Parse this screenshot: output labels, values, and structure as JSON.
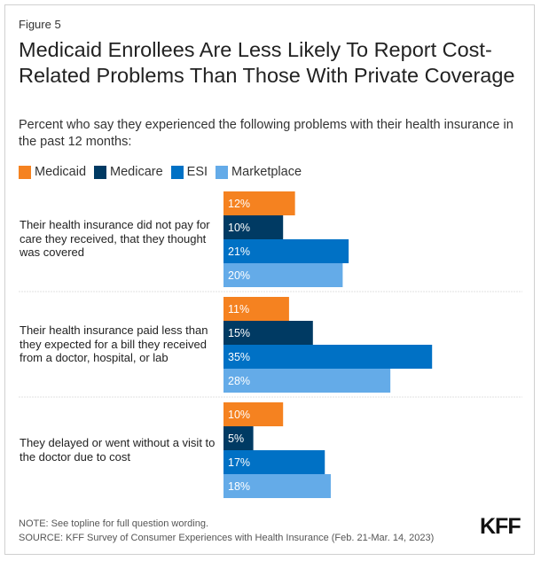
{
  "figure_label": "Figure 5",
  "title": "Medicaid Enrollees Are Less Likely To Report Cost-Related Problems Than Those With Private Coverage",
  "subtitle": "Percent who say they experienced the following problems with their health insurance in the past 12 months:",
  "note": "NOTE: See topline for full question wording.",
  "source": "SOURCE: KFF Survey of Consumer Experiences with Health Insurance (Feb. 21-Mar. 14, 2023)",
  "logo": "KFF",
  "chart_data": {
    "type": "bar",
    "orientation": "horizontal",
    "title": "Medicaid Enrollees Are Less Likely To Report Cost-Related Problems Than Those With Private Coverage",
    "subtitle": "Percent who say they experienced the following problems with their health insurance in the past 12 months:",
    "xlabel": "",
    "ylabel": "",
    "legend_position": "top-left",
    "grid": false,
    "categories": [
      "Their health insurance did not pay for care they received, that they thought was covered",
      "Their health insurance paid less than they expected for a bill they received from a doctor, hospital, or lab",
      "They delayed or went without a visit to the doctor due to cost"
    ],
    "series": [
      {
        "name": "Medicaid",
        "color": "#f58220",
        "values": [
          12,
          11,
          10
        ]
      },
      {
        "name": "Medicare",
        "color": "#003a63",
        "values": [
          10,
          15,
          5
        ]
      },
      {
        "name": "ESI",
        "color": "#0071c5",
        "values": [
          21,
          35,
          17
        ]
      },
      {
        "name": "Marketplace",
        "color": "#64abe8",
        "values": [
          20,
          28,
          18
        ]
      }
    ],
    "value_suffix": "%",
    "xlim": [
      0,
      35
    ]
  }
}
